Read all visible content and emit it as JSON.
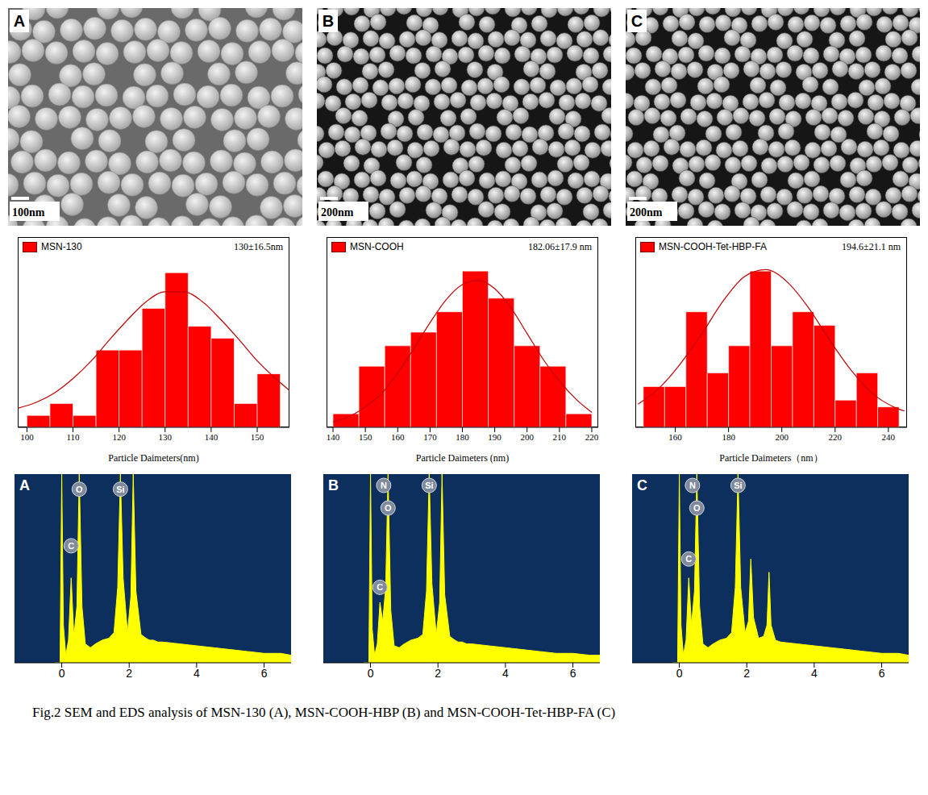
{
  "caption": "Fig.2 SEM and EDS analysis of MSN-130 (A), MSN-COOH-HBP (B) and MSN-COOH-Tet-HBP-FA (C)",
  "sem_images": [
    {
      "letter": "A",
      "scale_bar": "100nm"
    },
    {
      "letter": "B",
      "scale_bar": "200nm"
    },
    {
      "letter": "C",
      "scale_bar": "200nm"
    }
  ],
  "chart_data": [
    {
      "type": "histogram",
      "x_label": "Particle Daimeters(nm)",
      "annotation": "130±16.5nm",
      "bins": [
        100,
        105,
        110,
        115,
        120,
        125,
        130,
        135,
        140,
        145,
        150,
        155
      ],
      "series": [
        {
          "name": "MSN-130",
          "color": "#ff0000",
          "values": [
            1,
            2,
            1,
            6.5,
            6.5,
            10,
            13,
            8.5,
            7.5,
            2,
            4.5
          ]
        }
      ],
      "fit": {
        "color": "#c00000",
        "x": [
          98,
          102,
          106,
          110,
          114,
          118,
          122,
          126,
          130,
          134,
          138,
          142,
          146,
          150,
          154,
          157
        ],
        "values": [
          1.6,
          2.1,
          2.9,
          4.1,
          5.6,
          7.4,
          9.1,
          10.6,
          11.4,
          11.4,
          10.6,
          9.1,
          7.4,
          5.6,
          4.1,
          3.1
        ]
      },
      "xlim": [
        98,
        157
      ],
      "xticks": [
        100,
        110,
        120,
        130,
        140,
        150
      ],
      "ylim": [
        0,
        16
      ],
      "tick_labels": "x",
      "legend": "top-left"
    },
    {
      "type": "histogram",
      "x_label": "Particle Daimeters (nm)",
      "annotation": "182.06±17.9 nm",
      "bins": [
        140,
        148,
        156,
        164,
        172,
        180,
        188,
        196,
        204,
        212,
        220
      ],
      "series": [
        {
          "name": "MSN-COOH",
          "color": "#ff0000",
          "values": [
            1,
            4.5,
            6,
            7,
            8.5,
            11.5,
            9.5,
            6,
            4.5,
            1
          ]
        }
      ],
      "fit": {
        "color": "#c00000",
        "x": [
          140,
          145,
          150,
          155,
          160,
          165,
          170,
          175,
          180,
          185,
          190,
          195,
          200,
          205,
          210,
          215,
          220
        ],
        "values": [
          0.4,
          0.8,
          1.5,
          2.5,
          4.0,
          5.8,
          7.7,
          9.4,
          10.5,
          10.8,
          10.2,
          8.8,
          6.9,
          5.0,
          3.4,
          2.1,
          1.1
        ]
      },
      "xlim": [
        138,
        222
      ],
      "xticks": [
        140,
        150,
        160,
        170,
        180,
        190,
        200,
        210,
        220
      ],
      "ylim": [
        0,
        14
      ],
      "tick_labels": "x",
      "legend": "top-left"
    },
    {
      "type": "histogram",
      "x_label": "Particle Daimeters（nm）",
      "annotation": "194.6±21.1 nm",
      "bins": [
        148,
        156,
        164,
        172,
        180,
        188,
        196,
        204,
        212,
        220,
        228,
        236,
        244
      ],
      "series": [
        {
          "name": "MSN-COOH-Tet-HBP-FA",
          "color": "#ff0000",
          "values": [
            3,
            3,
            8.5,
            4,
            6,
            11.5,
            6,
            8.5,
            7.5,
            2,
            4,
            1.5
          ]
        }
      ],
      "fit": {
        "color": "#c00000",
        "x": [
          146,
          154,
          162,
          170,
          178,
          186,
          194,
          202,
          210,
          218,
          226,
          234,
          242,
          246
        ],
        "values": [
          1.7,
          2.9,
          4.7,
          6.9,
          9.3,
          11.1,
          11.6,
          10.7,
          8.8,
          6.4,
          4.2,
          2.5,
          1.5,
          1.2
        ]
      },
      "xlim": [
        145,
        247
      ],
      "xticks": [
        160,
        180,
        200,
        220,
        240
      ],
      "ylim": [
        0,
        14
      ],
      "tick_labels": "x",
      "legend": "top-left"
    },
    {
      "type": "area",
      "title": "A",
      "color": "#ffff00",
      "x": [
        -0.2,
        -0.05,
        0,
        0.05,
        0.12,
        0.2,
        0.28,
        0.36,
        0.45,
        0.52,
        0.6,
        0.7,
        0.85,
        1.0,
        1.2,
        1.4,
        1.55,
        1.66,
        1.74,
        1.82,
        1.95,
        2.05,
        2.12,
        2.2,
        2.35,
        2.5,
        2.6,
        2.66,
        2.72,
        2.85,
        3.0,
        3.5,
        4.0,
        4.5,
        5.0,
        5.5,
        6.0,
        6.5,
        6.8
      ],
      "values": [
        0,
        0,
        100,
        20,
        4,
        12,
        45,
        14,
        30,
        100,
        30,
        10,
        8,
        10,
        12,
        13,
        16,
        40,
        100,
        45,
        16,
        35,
        100,
        38,
        15,
        13,
        12,
        12,
        12,
        11,
        11,
        10,
        9,
        8,
        7,
        6,
        5,
        5,
        4
      ],
      "peaks": [
        {
          "label": "O",
          "x": 0.52,
          "y": 92
        },
        {
          "label": "Si",
          "x": 1.74,
          "y": 92
        },
        {
          "label": "C",
          "x": 0.28,
          "y": 62
        }
      ],
      "xlim": [
        -1.4,
        6.8
      ],
      "xticks": [
        0,
        2,
        4,
        6
      ],
      "ylim": [
        0,
        100
      ],
      "tick_labels": "x"
    },
    {
      "type": "area",
      "title": "B",
      "color": "#ffff00",
      "x": [
        -0.2,
        -0.05,
        0,
        0.05,
        0.12,
        0.2,
        0.28,
        0.36,
        0.45,
        0.52,
        0.6,
        0.7,
        0.85,
        1.0,
        1.2,
        1.4,
        1.55,
        1.66,
        1.74,
        1.82,
        1.95,
        2.05,
        2.12,
        2.2,
        2.35,
        2.5,
        2.6,
        2.66,
        2.72,
        2.85,
        3.0,
        3.5,
        4.0,
        4.5,
        5.0,
        5.5,
        6.0,
        6.5,
        6.8
      ],
      "values": [
        0,
        0,
        100,
        18,
        4,
        10,
        32,
        22,
        40,
        100,
        28,
        9,
        8,
        10,
        12,
        13,
        15,
        38,
        100,
        42,
        15,
        32,
        100,
        36,
        14,
        12,
        11,
        11,
        11,
        10,
        10,
        9,
        8,
        7,
        6,
        5,
        5,
        4,
        4
      ],
      "peaks": [
        {
          "label": "N",
          "x": 0.39,
          "y": 94
        },
        {
          "label": "O",
          "x": 0.52,
          "y": 82
        },
        {
          "label": "Si",
          "x": 1.74,
          "y": 94
        },
        {
          "label": "C",
          "x": 0.28,
          "y": 40
        }
      ],
      "xlim": [
        -1.4,
        6.8
      ],
      "xticks": [
        0,
        2,
        4,
        6
      ],
      "ylim": [
        0,
        100
      ],
      "tick_labels": "x"
    },
    {
      "type": "area",
      "title": "C",
      "color": "#ffff00",
      "x": [
        -0.2,
        -0.05,
        0,
        0.05,
        0.12,
        0.2,
        0.28,
        0.36,
        0.45,
        0.52,
        0.6,
        0.7,
        0.85,
        1.0,
        1.2,
        1.4,
        1.55,
        1.66,
        1.74,
        1.82,
        1.95,
        2.05,
        2.12,
        2.2,
        2.35,
        2.5,
        2.6,
        2.66,
        2.72,
        2.85,
        3.0,
        3.5,
        4.0,
        4.5,
        5.0,
        5.5,
        6.0,
        6.5,
        6.8
      ],
      "values": [
        0,
        0,
        100,
        20,
        4,
        12,
        45,
        20,
        38,
        100,
        30,
        10,
        8,
        10,
        12,
        13,
        16,
        40,
        100,
        40,
        16,
        22,
        55,
        24,
        13,
        14,
        20,
        48,
        20,
        12,
        11,
        10,
        9,
        8,
        7,
        6,
        5,
        5,
        4
      ],
      "peaks": [
        {
          "label": "N",
          "x": 0.39,
          "y": 94
        },
        {
          "label": "O",
          "x": 0.52,
          "y": 82
        },
        {
          "label": "Si",
          "x": 1.74,
          "y": 94
        },
        {
          "label": "C",
          "x": 0.28,
          "y": 55
        }
      ],
      "xlim": [
        -1.4,
        6.8
      ],
      "xticks": [
        0,
        2,
        4,
        6
      ],
      "ylim": [
        0,
        100
      ],
      "tick_labels": "x"
    }
  ]
}
